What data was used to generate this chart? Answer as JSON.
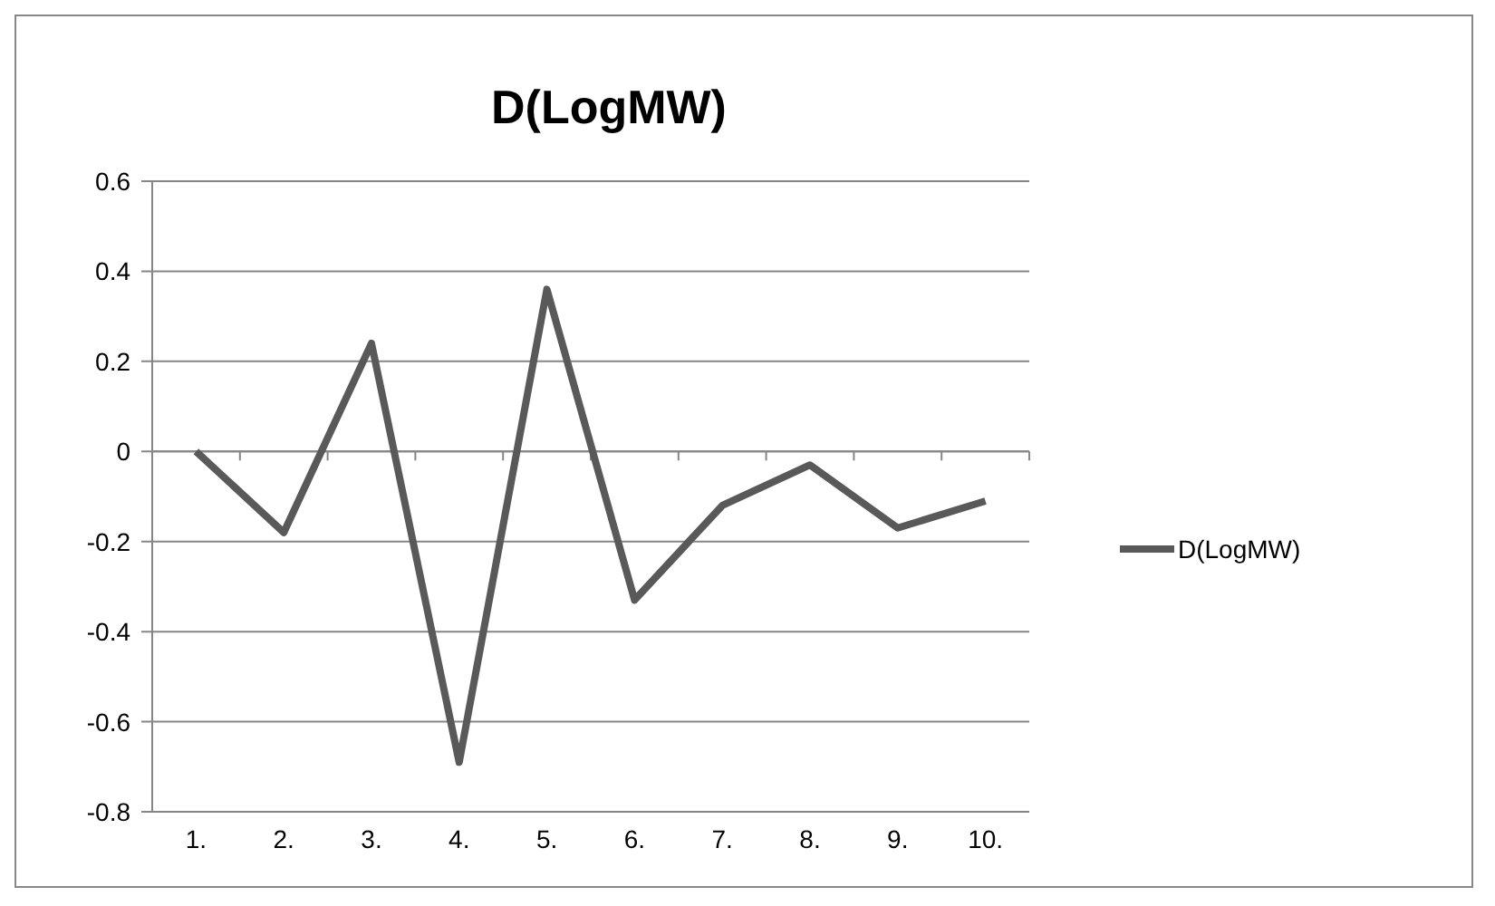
{
  "chart_data": {
    "type": "line",
    "title": "D(LogMW)",
    "categories": [
      "1.",
      "2.",
      "3.",
      "4.",
      "5.",
      "6.",
      "7.",
      "8.",
      "9.",
      "10."
    ],
    "series": [
      {
        "name": "D(LogMW)",
        "color": "#595959",
        "values": [
          0,
          -0.18,
          0.24,
          -0.69,
          0.36,
          -0.33,
          -0.12,
          -0.03,
          -0.17,
          -0.11
        ]
      }
    ],
    "ylim": [
      -0.8,
      0.6
    ],
    "yticks": [
      -0.8,
      -0.6,
      -0.4,
      -0.2,
      0,
      0.2,
      0.4,
      0.6
    ],
    "grid": "y",
    "legend": "right",
    "marker": "none",
    "line_style": "solid"
  }
}
